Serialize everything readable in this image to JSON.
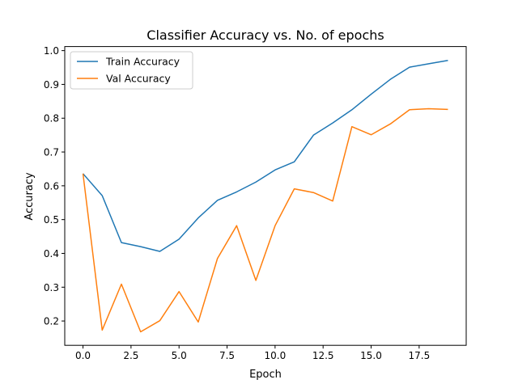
{
  "chart_data": {
    "type": "line",
    "title": "Classifier Accuracy vs. No. of epochs",
    "xlabel": "Epoch",
    "ylabel": "Accuracy",
    "xlim": [
      -0.95,
      19.95
    ],
    "ylim": [
      0.128,
      1.012
    ],
    "xticks": [
      0,
      2.5,
      5,
      7.5,
      10,
      12.5,
      15,
      17.5
    ],
    "xtick_labels": [
      "0.0",
      "2.5",
      "5.0",
      "7.5",
      "10.0",
      "12.5",
      "15.0",
      "17.5"
    ],
    "yticks": [
      0.2,
      0.3,
      0.4,
      0.5,
      0.6,
      0.7,
      0.8,
      0.9,
      1.0
    ],
    "ytick_labels": [
      "0.2",
      "0.3",
      "0.4",
      "0.5",
      "0.6",
      "0.7",
      "0.8",
      "0.9",
      "1.0"
    ],
    "grid": false,
    "legend_position": "top-left",
    "x": [
      0,
      1,
      2,
      3,
      4,
      5,
      6,
      7,
      8,
      9,
      10,
      11,
      12,
      13,
      14,
      15,
      16,
      17,
      18,
      19
    ],
    "series": [
      {
        "name": "Train Accuracy",
        "color": "#1f77b4",
        "values": [
          0.636,
          0.571,
          0.432,
          0.42,
          0.406,
          0.442,
          0.505,
          0.557,
          0.582,
          0.611,
          0.647,
          0.671,
          0.75,
          0.786,
          0.825,
          0.871,
          0.915,
          0.951,
          0.961,
          0.971
        ]
      },
      {
        "name": "Val Accuracy",
        "color": "#ff7f0e",
        "values": [
          0.636,
          0.173,
          0.309,
          0.168,
          0.201,
          0.287,
          0.197,
          0.385,
          0.482,
          0.32,
          0.482,
          0.591,
          0.58,
          0.555,
          0.775,
          0.751,
          0.783,
          0.825,
          0.828,
          0.826
        ]
      }
    ]
  }
}
